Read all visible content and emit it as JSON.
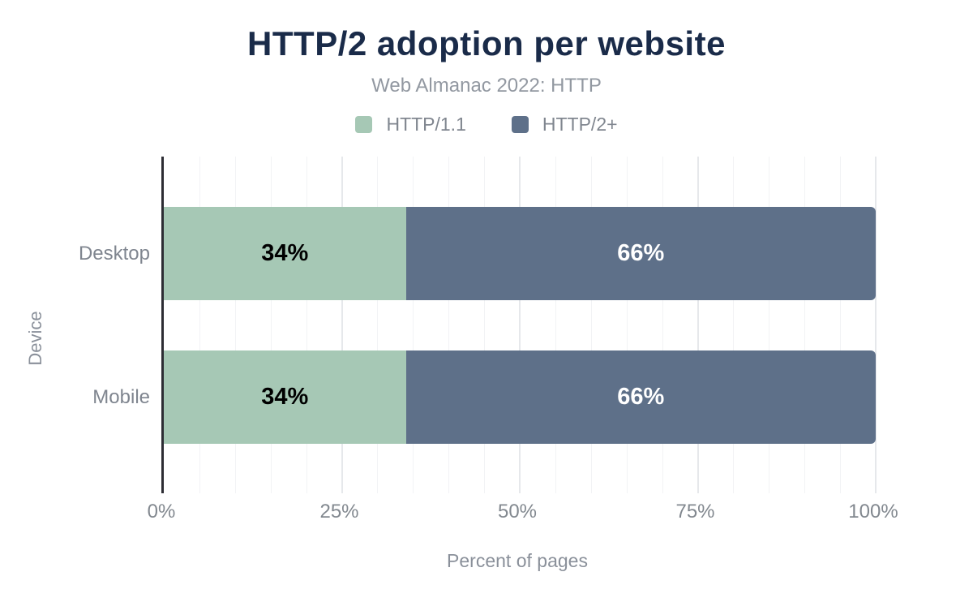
{
  "title": "HTTP/2 adoption per website",
  "subtitle": "Web Almanac 2022: HTTP",
  "legend": {
    "items": [
      {
        "label": "HTTP/1.1",
        "color": "#a6c8b5"
      },
      {
        "label": "HTTP/2+",
        "color": "#5e7089"
      }
    ]
  },
  "chart_data": {
    "type": "bar",
    "orientation": "horizontal",
    "stacked": true,
    "title": "HTTP/2 adoption per website",
    "subtitle": "Web Almanac 2022: HTTP",
    "categories": [
      "Desktop",
      "Mobile"
    ],
    "series": [
      {
        "name": "HTTP/1.1",
        "color": "#a6c8b5",
        "values": [
          34,
          34
        ],
        "label_color": "#000000"
      },
      {
        "name": "HTTP/2+",
        "color": "#5e7089",
        "values": [
          66,
          66
        ],
        "label_color": "#ffffff"
      }
    ],
    "value_label_suffix": "%",
    "xlabel": "Percent of pages",
    "ylabel": "Device",
    "xlim": [
      0,
      100
    ],
    "xticks": [
      0,
      25,
      50,
      75,
      100
    ],
    "xtick_labels": [
      "0%",
      "25%",
      "50%",
      "75%",
      "100%"
    ],
    "grid": {
      "minor_step": 5,
      "major_step": 25,
      "show": true
    },
    "legend_position": "top",
    "axis_color": "#2d2d34"
  }
}
